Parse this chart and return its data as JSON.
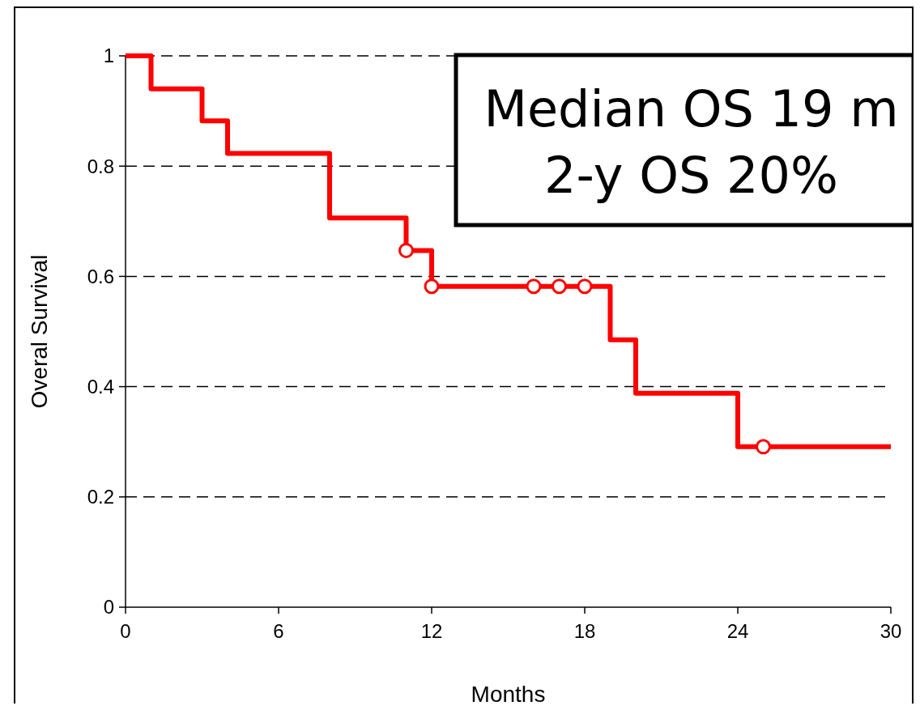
{
  "chart_data": {
    "type": "step",
    "xlabel": "Months",
    "ylabel": "Overal Survival",
    "xlim": [
      0,
      30
    ],
    "xticks": [
      0,
      6,
      12,
      18,
      24,
      30
    ],
    "ylim": [
      0,
      1
    ],
    "yticks": [
      0,
      0.2,
      0.4,
      0.6,
      0.8,
      1
    ],
    "grid": "y",
    "annotations": [
      "Median OS 19 m",
      "2-y OS 20%"
    ],
    "series": [
      {
        "color": "#ff0000",
        "marker": "none",
        "x": [
          0,
          1,
          3,
          4,
          8,
          11,
          12,
          19,
          20,
          24,
          30
        ],
        "values": [
          1,
          0.94,
          0.882,
          0.823,
          0.706,
          0.647,
          0.582,
          0.485,
          0.388,
          0.291,
          0.291
        ]
      },
      {
        "type": "scatter",
        "color": "#ff0000",
        "marker": "circle",
        "x": [
          11,
          12,
          16,
          17,
          18,
          25
        ],
        "values": [
          0.647,
          0.582,
          0.582,
          0.582,
          0.582,
          0.291
        ]
      }
    ]
  }
}
